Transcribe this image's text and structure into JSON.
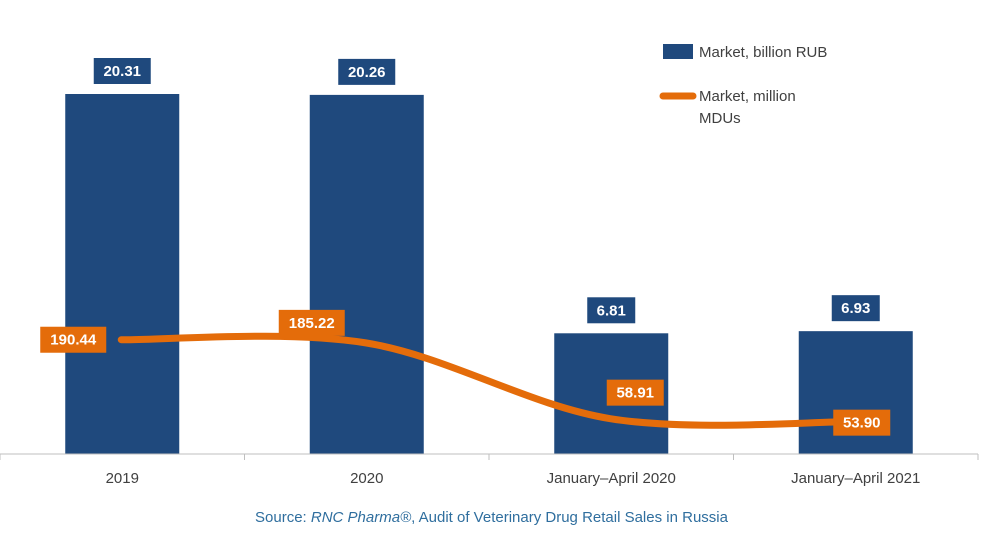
{
  "chart_data": {
    "type": "bar",
    "categories": [
      "2019",
      "2020",
      "January–April 2020",
      "January–April 2021"
    ],
    "series": [
      {
        "name": "Market, billion RUB",
        "kind": "bar",
        "axis": "left",
        "values": [
          20.31,
          20.26,
          6.81,
          6.93
        ],
        "labels": [
          "20.31",
          "20.26",
          "6.81",
          "6.93"
        ],
        "color": "#1f497d"
      },
      {
        "name": "Market, million MDUs",
        "kind": "line",
        "smooth": true,
        "axis": "right",
        "values": [
          190.44,
          185.22,
          58.91,
          53.9
        ],
        "labels": [
          "190.44",
          "185.22",
          "58.91",
          "53.90"
        ],
        "color": "#e46c0a"
      }
    ],
    "ylim_left": [
      0,
      20.31
    ],
    "ylim_right": [
      0,
      600
    ],
    "legend_position": "top-right",
    "grid": false,
    "source_prefix": "Source: ",
    "source_italic": "RNC Pharma®",
    "source_suffix": ", Audit of Veterinary Drug Retail Sales in Russia"
  }
}
